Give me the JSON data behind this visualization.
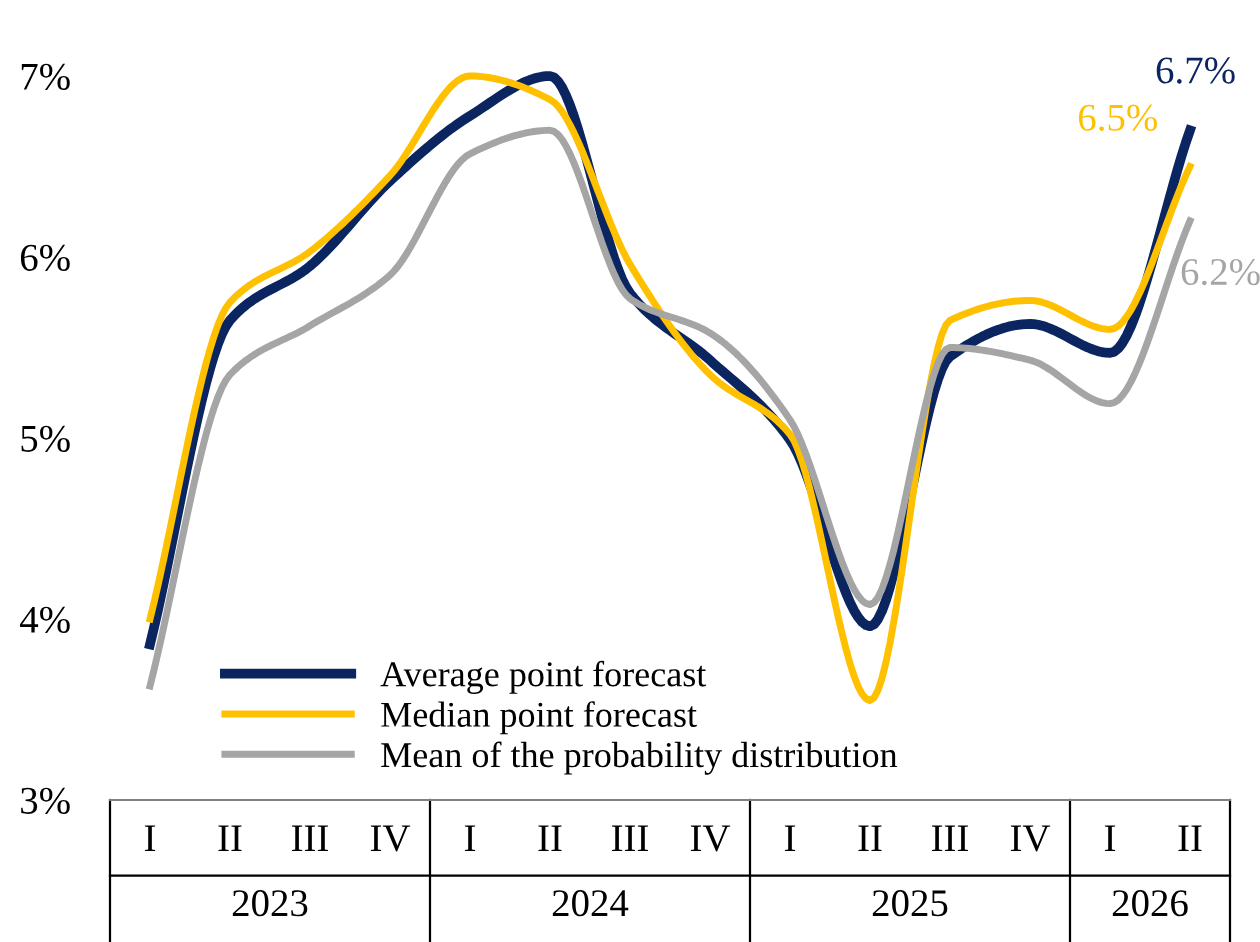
{
  "chart_data": {
    "type": "line",
    "categories": [
      "I",
      "II",
      "III",
      "IV",
      "I",
      "II",
      "III",
      "IV",
      "I",
      "II",
      "III",
      "IV",
      "I",
      "II"
    ],
    "annotations": [
      "2023",
      "2024",
      "2025",
      "2026"
    ],
    "ylim": [
      3,
      7
    ],
    "yticks": [
      {
        "value": 3,
        "label": "3%"
      },
      {
        "value": 4,
        "label": "4%"
      },
      {
        "value": 5,
        "label": "5%"
      },
      {
        "value": 6,
        "label": "6%"
      },
      {
        "value": 7,
        "label": "7%"
      }
    ],
    "grid": false,
    "legend": "bottom left",
    "line_style": "solid",
    "marker": "none",
    "series": [
      {
        "name": "Average point forecast",
        "color": "#0b2560",
        "values": [
          3.86,
          5.65,
          5.95,
          6.42,
          6.78,
          7.0,
          5.8,
          5.43,
          4.99,
          3.96,
          5.45,
          5.63,
          5.47,
          6.7
        ],
        "value_labels": [
          null,
          null,
          null,
          null,
          null,
          null,
          null,
          null,
          null,
          null,
          null,
          null,
          null,
          "6.7%"
        ]
      },
      {
        "name": "Median point forecast",
        "color": "#ffc000",
        "values": [
          4.0,
          5.75,
          6.03,
          6.45,
          7.0,
          6.87,
          5.96,
          5.35,
          5.02,
          3.55,
          5.65,
          5.76,
          5.6,
          6.5
        ],
        "value_labels": [
          null,
          null,
          null,
          null,
          null,
          null,
          null,
          null,
          null,
          null,
          null,
          null,
          null,
          "6.5%"
        ]
      },
      {
        "name": "Mean of the probability distribution",
        "color": "#a5a5a5",
        "values": [
          3.63,
          5.35,
          5.62,
          5.9,
          6.57,
          6.7,
          5.77,
          5.58,
          5.1,
          4.08,
          5.5,
          5.43,
          5.19,
          6.2
        ],
        "value_labels": [
          null,
          null,
          null,
          null,
          null,
          null,
          null,
          null,
          null,
          null,
          null,
          null,
          null,
          "6.2%"
        ]
      }
    ]
  }
}
